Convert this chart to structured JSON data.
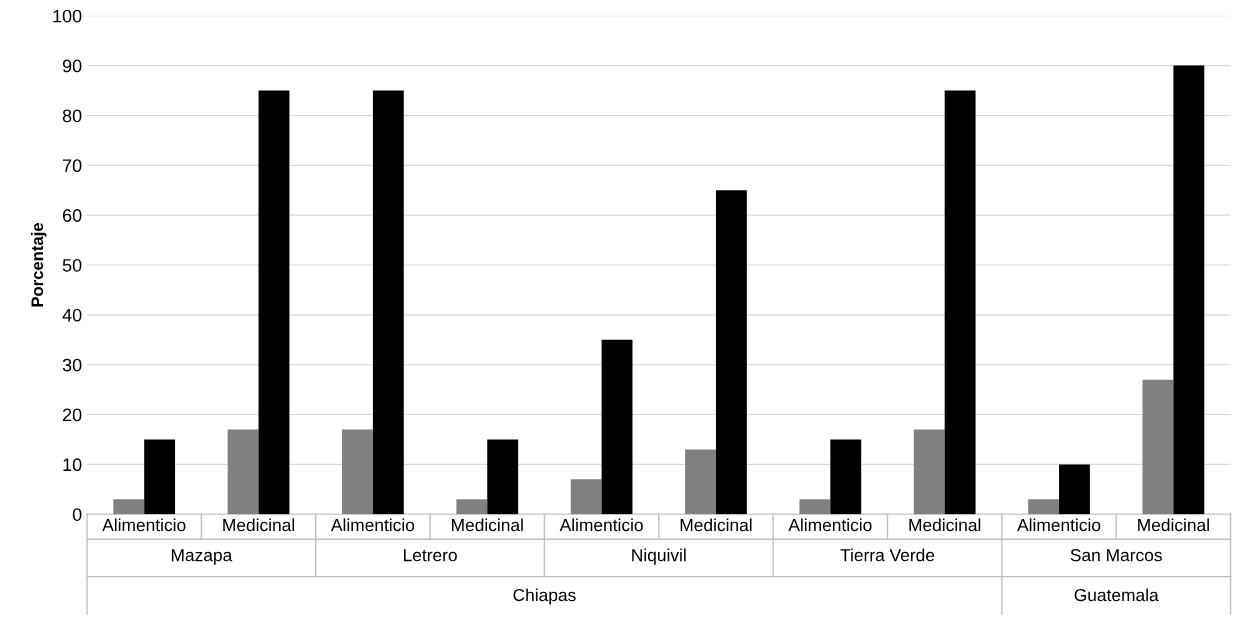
{
  "chart_data": {
    "type": "bar",
    "ylabel": "Porcentaje",
    "categories": [
      "Alimenticio",
      "Medicinal",
      "Alimenticio",
      "Medicinal",
      "Alimenticio",
      "Medicinal",
      "Alimenticio",
      "Medicinal",
      "Alimenticio",
      "Medicinal"
    ],
    "series": [
      {
        "color": "#808080",
        "values": [
          3,
          17,
          17,
          3,
          7,
          13,
          3,
          17,
          3,
          27
        ]
      },
      {
        "color": "#000000",
        "values": [
          15,
          85,
          85,
          15,
          35,
          65,
          15,
          85,
          10,
          90
        ]
      }
    ],
    "annotations": [
      "Mazapa",
      "Letrero",
      "Niquivil",
      "Tierra Verde",
      "San Marcos",
      "Chiapas",
      "Guatemala"
    ],
    "ylim": [
      0,
      100
    ],
    "yticks": [
      0,
      10,
      20,
      30,
      40,
      50,
      60,
      70,
      80,
      90,
      100
    ],
    "grid": "y",
    "legend": false
  }
}
